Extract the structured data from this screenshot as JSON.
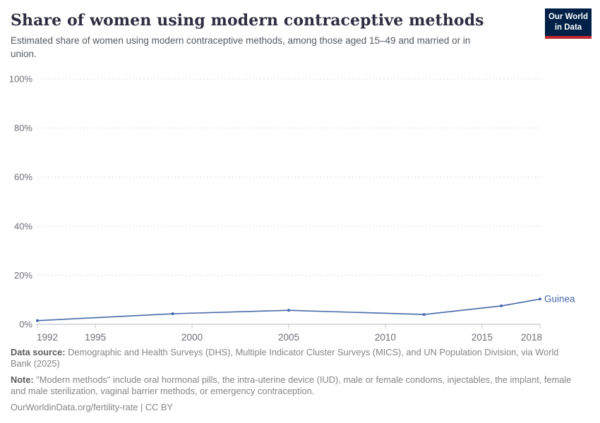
{
  "header": {
    "title": "Share of women using modern contraceptive methods",
    "subtitle": "Estimated share of women using modern contraceptive methods, among those aged 15–49 and married or in union.",
    "logo": {
      "line1": "Our World",
      "line2": "in Data",
      "bg_color": "#002147",
      "accent_color": "#c1272d"
    }
  },
  "chart_data": {
    "type": "line",
    "title": "Share of women using modern contraceptive methods",
    "xlabel": "",
    "ylabel": "",
    "xlim": [
      1992,
      2018
    ],
    "ylim": [
      0,
      100
    ],
    "grid": true,
    "x_ticks": [
      1992,
      1995,
      2000,
      2005,
      2010,
      2015,
      2018
    ],
    "x_tick_labels": [
      "1992",
      "1995",
      "2000",
      "2005",
      "2010",
      "2015",
      "2018"
    ],
    "y_ticks": [
      0,
      20,
      40,
      60,
      80,
      100
    ],
    "y_tick_labels": [
      "0%",
      "20%",
      "40%",
      "60%",
      "80%",
      "100%"
    ],
    "series": [
      {
        "name": "Guinea",
        "color": "#4569a8",
        "x": [
          1992,
          1999,
          2005,
          2012,
          2016,
          2018
        ],
        "values": [
          1.5,
          4.3,
          5.7,
          4.0,
          7.5,
          10.3
        ]
      }
    ],
    "legend_position": "end-of-line",
    "grid_color": "#dcdce3",
    "axis_color": "#c8c8cd",
    "tick_label_color": "#6e6e76"
  },
  "footer": {
    "data_source_label": "Data source:",
    "data_source_text": "Demographic and Health Surveys (DHS), Multiple Indicator Cluster Surveys (MICS), and UN Population Division, via World Bank (2025)",
    "note_label": "Note:",
    "note_text": "\"Modern methods\" include oral hormonal pills, the intra-uterine device (IUD), male or female condoms, injectables, the implant, female and male sterilization, vaginal barrier methods, or emergency contraception.",
    "citation": "OurWorldinData.org/fertility-rate | CC BY"
  }
}
